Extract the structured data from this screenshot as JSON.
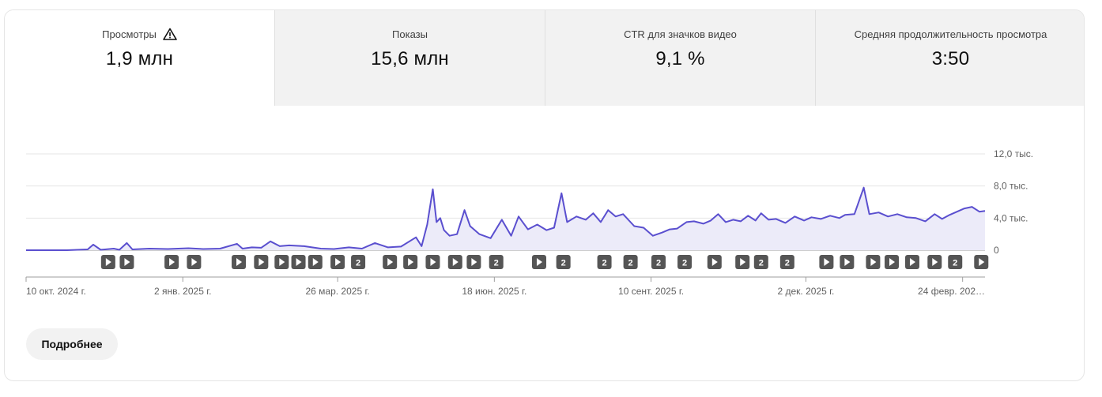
{
  "tabs": [
    {
      "label": "Просмотры",
      "value": "1,9 млн",
      "warning_icon": "warning-triangle-icon"
    },
    {
      "label": "Показы",
      "value": "15,6 млн"
    },
    {
      "label": "CTR для значков видео",
      "value": "9,1 %"
    },
    {
      "label": "Средняя продолжительность просмотра",
      "value": "3:50"
    }
  ],
  "more_button_label": "Подробнее",
  "colors": {
    "line": "#5a4fcf",
    "area": "#ecebf9",
    "marker": "#555555",
    "active_tab": "#ffffff",
    "inactive_tab": "#f2f2f2"
  },
  "chart_data": {
    "type": "area",
    "ylim": [
      0,
      12000
    ],
    "y_ticks": [
      {
        "value": 0,
        "label": "0"
      },
      {
        "value": 4000,
        "label": "4,0 тыс."
      },
      {
        "value": 8000,
        "label": "8,0 тыс."
      },
      {
        "value": 12000,
        "label": "12,0 тыс."
      }
    ],
    "x_range": [
      "2024-10-10",
      "2026-03-08"
    ],
    "x_ticks": [
      {
        "date": "2024-10-10",
        "label": "10 окт. 2024 г."
      },
      {
        "date": "2025-01-02",
        "label": "2 янв. 2025 г."
      },
      {
        "date": "2025-03-26",
        "label": "26 мар. 2025 г."
      },
      {
        "date": "2025-06-18",
        "label": "18 июн. 2025 г."
      },
      {
        "date": "2025-09-10",
        "label": "10 сент. 2025 г."
      },
      {
        "date": "2025-12-02",
        "label": "2 дек. 2025 г."
      },
      {
        "date": "2026-02-24",
        "label": "24 февр. 202…"
      }
    ],
    "series": [
      {
        "points": [
          [
            "2024-10-10",
            0
          ],
          [
            "2024-11-01",
            0
          ],
          [
            "2024-11-12",
            100
          ],
          [
            "2024-11-15",
            700
          ],
          [
            "2024-11-19",
            50
          ],
          [
            "2024-11-26",
            200
          ],
          [
            "2024-11-29",
            50
          ],
          [
            "2024-12-03",
            900
          ],
          [
            "2024-12-06",
            100
          ],
          [
            "2024-12-15",
            200
          ],
          [
            "2024-12-25",
            150
          ],
          [
            "2025-01-05",
            250
          ],
          [
            "2025-01-13",
            150
          ],
          [
            "2025-01-22",
            200
          ],
          [
            "2025-01-31",
            800
          ],
          [
            "2025-02-03",
            200
          ],
          [
            "2025-02-08",
            350
          ],
          [
            "2025-02-13",
            300
          ],
          [
            "2025-02-18",
            1100
          ],
          [
            "2025-02-23",
            500
          ],
          [
            "2025-02-28",
            600
          ],
          [
            "2025-03-08",
            500
          ],
          [
            "2025-03-17",
            200
          ],
          [
            "2025-03-24",
            150
          ],
          [
            "2025-04-01",
            350
          ],
          [
            "2025-04-08",
            200
          ],
          [
            "2025-04-15",
            900
          ],
          [
            "2025-04-22",
            350
          ],
          [
            "2025-04-29",
            450
          ],
          [
            "2025-05-07",
            1600
          ],
          [
            "2025-05-10",
            500
          ],
          [
            "2025-05-13",
            3200
          ],
          [
            "2025-05-16",
            7600
          ],
          [
            "2025-05-18",
            3500
          ],
          [
            "2025-05-20",
            4000
          ],
          [
            "2025-05-22",
            2500
          ],
          [
            "2025-05-25",
            1800
          ],
          [
            "2025-05-29",
            2000
          ],
          [
            "2025-06-02",
            5000
          ],
          [
            "2025-06-05",
            3000
          ],
          [
            "2025-06-10",
            2000
          ],
          [
            "2025-06-16",
            1500
          ],
          [
            "2025-06-22",
            3800
          ],
          [
            "2025-06-27",
            1800
          ],
          [
            "2025-07-01",
            4200
          ],
          [
            "2025-07-06",
            2600
          ],
          [
            "2025-07-11",
            3200
          ],
          [
            "2025-07-16",
            2500
          ],
          [
            "2025-07-20",
            2800
          ],
          [
            "2025-07-24",
            7100
          ],
          [
            "2025-07-27",
            3500
          ],
          [
            "2025-08-01",
            4200
          ],
          [
            "2025-08-06",
            3800
          ],
          [
            "2025-08-10",
            4600
          ],
          [
            "2025-08-14",
            3500
          ],
          [
            "2025-08-18",
            5000
          ],
          [
            "2025-08-22",
            4200
          ],
          [
            "2025-08-26",
            4500
          ],
          [
            "2025-09-01",
            3000
          ],
          [
            "2025-09-06",
            2800
          ],
          [
            "2025-09-11",
            1800
          ],
          [
            "2025-09-16",
            2200
          ],
          [
            "2025-09-20",
            2600
          ],
          [
            "2025-09-24",
            2700
          ],
          [
            "2025-09-29",
            3500
          ],
          [
            "2025-10-03",
            3600
          ],
          [
            "2025-10-08",
            3300
          ],
          [
            "2025-10-12",
            3700
          ],
          [
            "2025-10-16",
            4500
          ],
          [
            "2025-10-20",
            3500
          ],
          [
            "2025-10-24",
            3800
          ],
          [
            "2025-10-28",
            3600
          ],
          [
            "2025-11-01",
            4300
          ],
          [
            "2025-11-05",
            3700
          ],
          [
            "2025-11-08",
            4600
          ],
          [
            "2025-11-12",
            3800
          ],
          [
            "2025-11-16",
            3900
          ],
          [
            "2025-11-21",
            3400
          ],
          [
            "2025-11-26",
            4200
          ],
          [
            "2025-12-01",
            3700
          ],
          [
            "2025-12-05",
            4100
          ],
          [
            "2025-12-10",
            3900
          ],
          [
            "2025-12-15",
            4300
          ],
          [
            "2025-12-20",
            4000
          ],
          [
            "2025-12-23",
            4400
          ],
          [
            "2025-12-28",
            4500
          ],
          [
            "2026-01-02",
            7800
          ],
          [
            "2026-01-05",
            4500
          ],
          [
            "2026-01-10",
            4700
          ],
          [
            "2026-01-15",
            4200
          ],
          [
            "2026-01-20",
            4500
          ],
          [
            "2026-01-25",
            4100
          ],
          [
            "2026-01-30",
            4000
          ],
          [
            "2026-02-04",
            3600
          ],
          [
            "2026-02-09",
            4500
          ],
          [
            "2026-02-13",
            3900
          ],
          [
            "2026-02-17",
            4400
          ],
          [
            "2026-02-21",
            4800
          ],
          [
            "2026-02-25",
            5200
          ],
          [
            "2026-03-01",
            5400
          ],
          [
            "2026-03-05",
            4800
          ],
          [
            "2026-03-08",
            4900
          ]
        ]
      }
    ],
    "markers": [
      {
        "date": "2024-11-23",
        "kind": "video"
      },
      {
        "date": "2024-12-03",
        "kind": "video"
      },
      {
        "date": "2024-12-27",
        "kind": "video"
      },
      {
        "date": "2025-01-08",
        "kind": "video"
      },
      {
        "date": "2025-02-01",
        "kind": "video"
      },
      {
        "date": "2025-02-13",
        "kind": "video"
      },
      {
        "date": "2025-02-24",
        "kind": "video"
      },
      {
        "date": "2025-03-05",
        "kind": "video"
      },
      {
        "date": "2025-03-14",
        "kind": "video"
      },
      {
        "date": "2025-03-26",
        "kind": "video"
      },
      {
        "date": "2025-04-06",
        "kind": "group",
        "count": "2"
      },
      {
        "date": "2025-04-23",
        "kind": "video"
      },
      {
        "date": "2025-05-04",
        "kind": "video"
      },
      {
        "date": "2025-05-16",
        "kind": "video"
      },
      {
        "date": "2025-05-28",
        "kind": "video"
      },
      {
        "date": "2025-06-07",
        "kind": "video"
      },
      {
        "date": "2025-06-19",
        "kind": "group",
        "count": "2"
      },
      {
        "date": "2025-07-12",
        "kind": "video"
      },
      {
        "date": "2025-07-25",
        "kind": "group",
        "count": "2"
      },
      {
        "date": "2025-08-16",
        "kind": "group",
        "count": "2"
      },
      {
        "date": "2025-08-30",
        "kind": "group",
        "count": "2"
      },
      {
        "date": "2025-09-14",
        "kind": "group",
        "count": "2"
      },
      {
        "date": "2025-09-28",
        "kind": "group",
        "count": "2"
      },
      {
        "date": "2025-10-14",
        "kind": "video"
      },
      {
        "date": "2025-10-29",
        "kind": "video"
      },
      {
        "date": "2025-11-08",
        "kind": "group",
        "count": "2"
      },
      {
        "date": "2025-11-22",
        "kind": "group",
        "count": "2"
      },
      {
        "date": "2025-12-13",
        "kind": "video"
      },
      {
        "date": "2025-12-24",
        "kind": "video"
      },
      {
        "date": "2026-01-07",
        "kind": "video"
      },
      {
        "date": "2026-01-17",
        "kind": "video"
      },
      {
        "date": "2026-01-28",
        "kind": "video"
      },
      {
        "date": "2026-02-09",
        "kind": "video"
      },
      {
        "date": "2026-02-20",
        "kind": "group",
        "count": "2"
      },
      {
        "date": "2026-03-06",
        "kind": "video"
      }
    ]
  }
}
